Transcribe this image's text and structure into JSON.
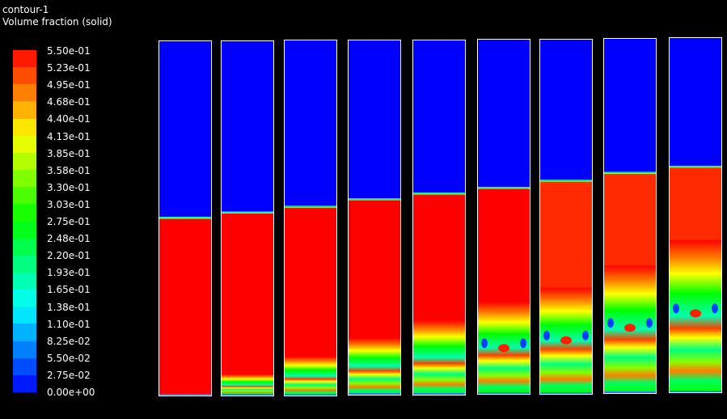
{
  "header": {
    "title": "contour-1",
    "subtitle": "Volume fraction (solid)"
  },
  "chart_data": {
    "type": "heatmap",
    "title": "contour-1",
    "variable": "Volume fraction (solid)",
    "colorbar": {
      "labels": [
        "5.50e-01",
        "5.23e-01",
        "4.95e-01",
        "4.68e-01",
        "4.40e-01",
        "4.13e-01",
        "3.85e-01",
        "3.58e-01",
        "3.30e-01",
        "3.03e-01",
        "2.75e-01",
        "2.48e-01",
        "2.20e-01",
        "1.93e-01",
        "1.65e-01",
        "1.38e-01",
        "1.10e-01",
        "8.25e-02",
        "5.50e-02",
        "2.75e-02",
        "0.00e+00"
      ],
      "range": [
        0,
        0.55
      ],
      "levels": 20,
      "colormap": "rainbow (blue low, red high)"
    },
    "panels": [
      {
        "bed_fraction": 0.5
      },
      {
        "bed_fraction": 0.515
      },
      {
        "bed_fraction": 0.53
      },
      {
        "bed_fraction": 0.55
      },
      {
        "bed_fraction": 0.566
      },
      {
        "bed_fraction": 0.58
      },
      {
        "bed_fraction": 0.6
      },
      {
        "bed_fraction": 0.62
      },
      {
        "bed_fraction": 0.635
      }
    ],
    "colors": {
      "high": "#ff0000",
      "low": "#0000ff",
      "outline": "#ffffff"
    }
  }
}
